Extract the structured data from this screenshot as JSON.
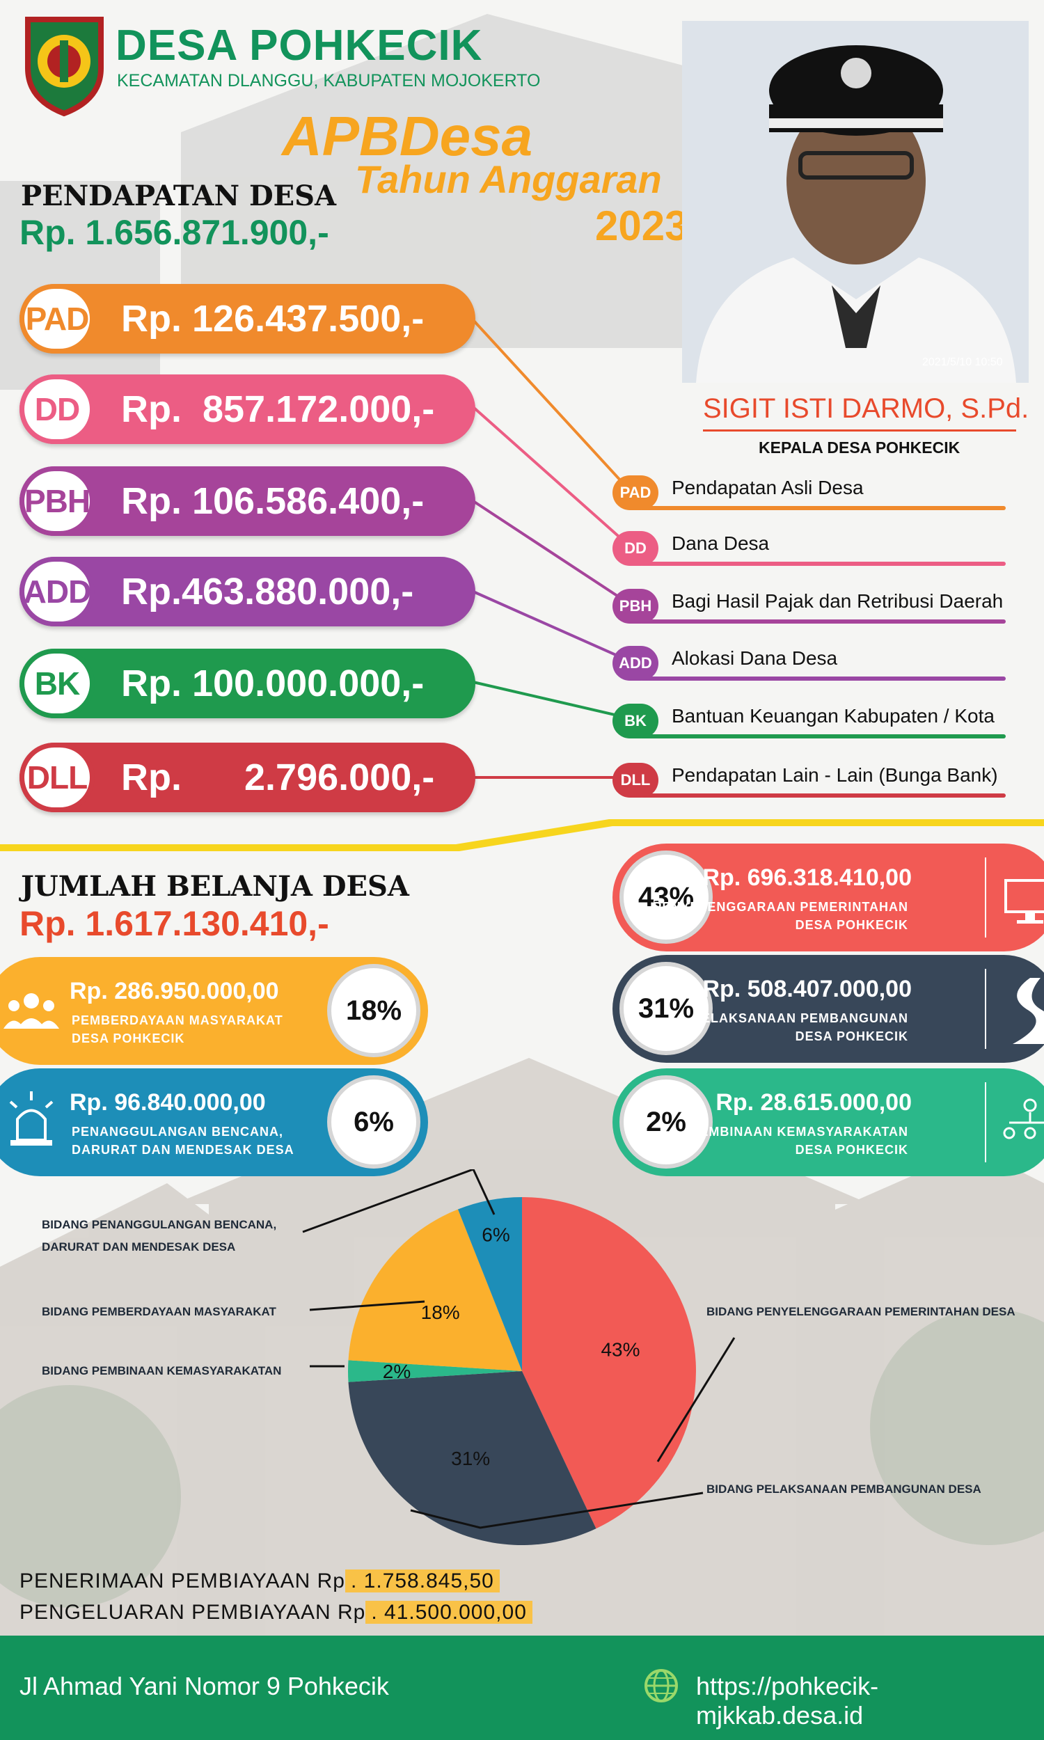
{
  "header": {
    "title": "DESA POHKECIK",
    "subtitle": "KECAMATAN DLANGGU, KABUPATEN MOJOKERTO",
    "apb_line1": "APBDesa",
    "apb_line2": "Tahun Anggaran",
    "apb_year": "2023"
  },
  "person": {
    "name": "SIGIT ISTI DARMO, S.Pd.",
    "role": "KEPALA DESA POHKECIK",
    "photo_stamp": "2021/5/10 10:50"
  },
  "income": {
    "title": "PENDAPATAN DESA",
    "total": "Rp. 1.656.871.900,-",
    "items": [
      {
        "code": "PAD",
        "amount": "Rp. 126.437.500,-",
        "desc": "Pendapatan Asli Desa",
        "color": "#f08a2c"
      },
      {
        "code": "DD",
        "amount": "Rp.  857.172.000,-",
        "desc": "Dana Desa",
        "color": "#ec5d84"
      },
      {
        "code": "PBH",
        "amount": "Rp. 106.586.400,-",
        "desc": "Bagi Hasil Pajak dan Retribusi Daerah",
        "color": "#a6449a"
      },
      {
        "code": "ADD",
        "amount": "Rp.463.880.000,-",
        "desc": "Alokasi Dana Desa",
        "color": "#9a47a4"
      },
      {
        "code": "BK",
        "amount": "Rp. 100.000.000,-",
        "desc": "Bantuan Keuangan Kabupaten / Kota",
        "color": "#1f9a4e"
      },
      {
        "code": "DLL",
        "amount": "Rp.      2.796.000,-",
        "desc": "Pendapatan Lain - Lain (Bunga Bank)",
        "color": "#cf3b45"
      }
    ]
  },
  "spending": {
    "title": "JUMLAH BELANJA DESA",
    "total": "Rp. 1.617.130.410,-",
    "cards": [
      {
        "pct": "43%",
        "amount": "Rp. 696.318.410,00",
        "label1": "PENYELENGGARAAN PEMERINTAHAN",
        "label2": "DESA POHKECIK",
        "color": "#f25a55",
        "icon": "monitor-icon"
      },
      {
        "pct": "31%",
        "amount": "Rp. 508.407.000,00",
        "label1": "PELAKSANAAN PEMBANGUNAN",
        "label2": "DESA POHKECIK",
        "color": "#384759",
        "icon": "road-icon"
      },
      {
        "pct": "2%",
        "amount": "Rp. 28.615.000,00",
        "label1": "PEMBINAAN KEMASYARAKATAN",
        "label2": "DESA POHKECIK",
        "color": "#2bb88a",
        "icon": "people-structure-icon"
      },
      {
        "pct": "18%",
        "amount": "Rp. 286.950.000,00",
        "label1": "PEMBERDAYAAN MASYARAKAT",
        "label2": "DESA POHKECIK",
        "color": "#fbb02d",
        "icon": "group-icon"
      },
      {
        "pct": "6%",
        "amount": "Rp. 96.840.000,00",
        "label1": "PENANGGULANGAN BENCANA,",
        "label2": "DARURAT DAN MENDESAK DESA",
        "color": "#1d8eb8",
        "icon": "siren-icon"
      }
    ]
  },
  "chart_data": {
    "type": "pie",
    "categories": [
      "BIDANG PENYELENGGARAAN PEMERINTAHAN DESA",
      "BIDANG PELAKSANAAN PEMBANGUNAN DESA",
      "BIDANG PEMBINAAN KEMASYARAKATAN",
      "BIDANG PEMBERDAYAAN MASYARAKAT",
      "BIDANG PENANGGULANGAN BENCANA, DARURAT DAN MENDESAK DESA"
    ],
    "values": [
      43,
      31,
      2,
      18,
      6
    ],
    "value_labels": [
      "43%",
      "31%",
      "2%",
      "18%",
      "6%"
    ],
    "colors": [
      "#f25a55",
      "#384759",
      "#2bb88a",
      "#fbb02d",
      "#1d8eb8"
    ],
    "label_lines": [
      [
        "BIDANG PENYELENGGARAAN PEMERINTAHAN DESA"
      ],
      [
        "BIDANG PELAKSANAAN PEMBANGUNAN DESA"
      ],
      [
        "BIDANG PEMBINAAN KEMASYARAKATAN"
      ],
      [
        "BIDANG PEMBERDAYAAN MASYARAKAT"
      ],
      [
        "BIDANG PENANGGULANGAN BENCANA,",
        "DARURAT DAN MENDESAK DESA"
      ]
    ]
  },
  "financing": {
    "in_label": "PENERIMAAN PEMBIAYAAN Rp",
    "in_value": ". 1.758.845,50",
    "out_label": "PENGELUARAN PEMBIAYAAN Rp",
    "out_value": ". 41.500.000,00"
  },
  "footer": {
    "address": "Jl Ahmad Yani Nomor 9 Pohkecik",
    "url": "https://pohkecik-mjkkab.desa.id"
  }
}
